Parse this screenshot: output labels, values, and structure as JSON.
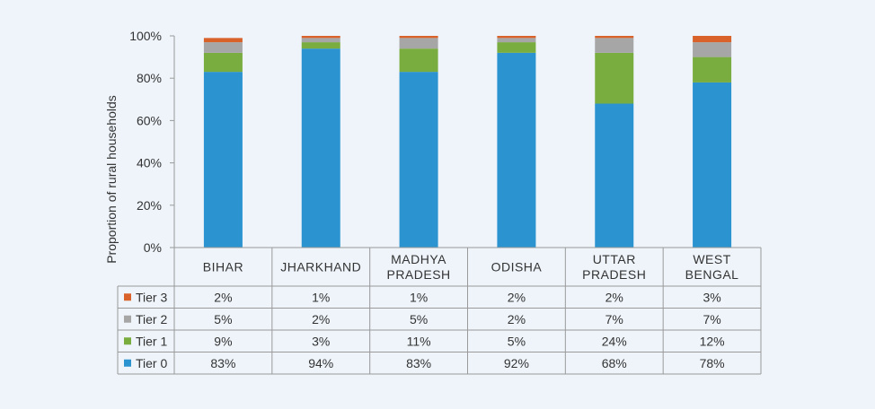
{
  "chart_data": {
    "type": "bar",
    "stacked": true,
    "ylabel": "Proportion of rural households",
    "ylim": [
      0,
      100
    ],
    "yticks": [
      "0%",
      "20%",
      "40%",
      "60%",
      "80%",
      "100%"
    ],
    "categories": [
      [
        "BIHAR"
      ],
      [
        "JHARKHAND"
      ],
      [
        "MADHYA",
        "PRADESH"
      ],
      [
        "ODISHA"
      ],
      [
        "UTTAR",
        "PRADESH"
      ],
      [
        "WEST",
        "BENGAL"
      ]
    ],
    "series": [
      {
        "name": "Tier 0",
        "color": "#2a93d0",
        "values": [
          83,
          94,
          83,
          92,
          68,
          78
        ],
        "labels": [
          "83%",
          "94%",
          "83%",
          "92%",
          "68%",
          "78%"
        ]
      },
      {
        "name": "Tier 1",
        "color": "#7aad40",
        "values": [
          9,
          3,
          11,
          5,
          24,
          12
        ],
        "labels": [
          "9%",
          "3%",
          "11%",
          "5%",
          "24%",
          "12%"
        ]
      },
      {
        "name": "Tier 2",
        "color": "#a6a6a6",
        "values": [
          5,
          2,
          5,
          2,
          7,
          7
        ],
        "labels": [
          "5%",
          "2%",
          "5%",
          "2%",
          "7%",
          "7%"
        ]
      },
      {
        "name": "Tier 3",
        "color": "#d9622b",
        "values": [
          2,
          1,
          1,
          2,
          2,
          3
        ],
        "labels": [
          "2%",
          "1%",
          "1%",
          "2%",
          "2%",
          "3%"
        ]
      }
    ],
    "table_row_order": [
      "Tier 3",
      "Tier 2",
      "Tier 1",
      "Tier 0"
    ],
    "grid": false,
    "legend": "data-table-left"
  }
}
